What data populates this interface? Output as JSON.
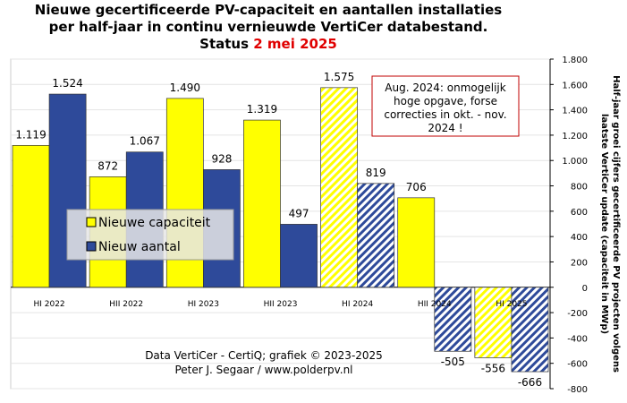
{
  "chart_data": {
    "type": "bar",
    "title": [
      "Nieuwe gecertificeerde PV-capaciteit en aantallen installaties",
      "per half-jaar in continu vernieuwde VertiCer databestand."
    ],
    "status": "Status",
    "status_date": "2 mei 2025",
    "y_label": [
      "Half-jaar groei cijfers gecertificeerde PV projecten volgens",
      "laatste VertiCer update (capaciteit in MWp)"
    ],
    "categories": [
      "HI 2022",
      "HII 2022",
      "HI 2023",
      "HII 2023",
      "HI 2024",
      "HII 2024",
      "HI 2025"
    ],
    "series": [
      {
        "name": "Nieuwe capaciteit",
        "color": "#ffff00",
        "values": [
          1119,
          872,
          1490,
          1319,
          1575,
          706,
          -556
        ],
        "value_labels": [
          "1.119",
          "872",
          "1.490",
          "1.319",
          "1.575",
          "706",
          "-556"
        ],
        "hatched": [
          false,
          false,
          false,
          false,
          true,
          false,
          true
        ]
      },
      {
        "name": "Nieuw aantal",
        "color": "#2e4a9a",
        "values": [
          1524,
          1067,
          928,
          497,
          819,
          -505,
          -666
        ],
        "value_labels": [
          "1.524",
          "1.067",
          "928",
          "497",
          "819",
          "-505",
          "-666"
        ],
        "hatched": [
          false,
          false,
          false,
          false,
          true,
          true,
          true
        ]
      }
    ],
    "ylim": [
      -800,
      1800
    ],
    "yticks": [
      -800,
      -600,
      -400,
      -200,
      0,
      200,
      400,
      600,
      800,
      {
        "value": 1000,
        "label": "1.000"
      },
      {
        "value": 1200,
        "label": "1.200"
      },
      {
        "value": 1400,
        "label": "1.400"
      },
      {
        "value": 1600,
        "label": "1.600"
      },
      {
        "value": 1800,
        "label": "1.800"
      }
    ],
    "grid": true,
    "annotation": [
      "Aug. 2024: onmogelijk",
      "hoge opgave, forse",
      "correcties in okt. - nov.",
      "2024 !"
    ],
    "footer": [
      "Data VertiCer - CertiQ; grafiek © 2023-2025",
      "Peter J. Segaar / www.polderpv.nl"
    ]
  }
}
